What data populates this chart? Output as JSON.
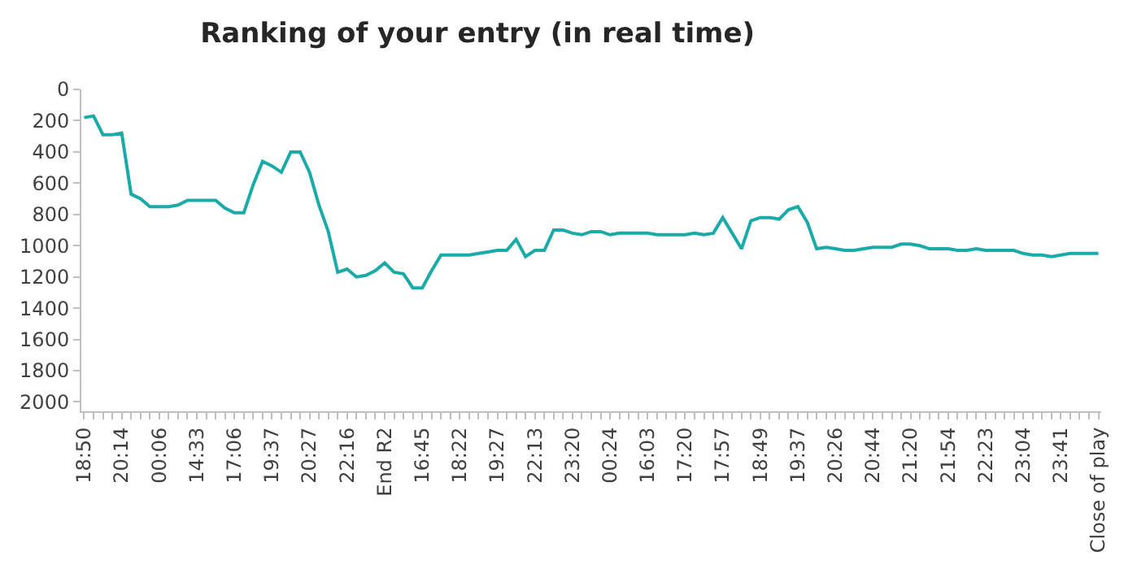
{
  "chart_data": {
    "type": "line",
    "title": "Ranking of your entry (in real time)",
    "categories": [
      "18:50",
      null,
      null,
      null,
      "20:14",
      null,
      null,
      null,
      "00:06",
      null,
      null,
      null,
      "14:33",
      null,
      null,
      null,
      "17:06",
      null,
      null,
      null,
      "19:37",
      null,
      null,
      null,
      "20:27",
      null,
      null,
      null,
      "22:16",
      null,
      null,
      null,
      "End R2",
      null,
      null,
      null,
      "16:45",
      null,
      null,
      null,
      "18:22",
      null,
      null,
      null,
      "19:27",
      null,
      null,
      null,
      "22:13",
      null,
      null,
      null,
      "23:20",
      null,
      null,
      null,
      "00:24",
      null,
      null,
      null,
      "16:03",
      null,
      null,
      null,
      "17:20",
      null,
      null,
      null,
      "17:57",
      null,
      null,
      null,
      "18:49",
      null,
      null,
      null,
      "19:37",
      null,
      null,
      null,
      "20:26",
      null,
      null,
      null,
      "20:44",
      null,
      null,
      null,
      "21:20",
      null,
      null,
      null,
      "21:54",
      null,
      null,
      null,
      "22:23",
      null,
      null,
      null,
      "23:04",
      null,
      null,
      null,
      "23:41",
      null,
      null,
      null,
      "Close of play"
    ],
    "series": [
      {
        "color": "#1aaba8",
        "values": [
          180,
          170,
          290,
          290,
          280,
          670,
          700,
          750,
          750,
          750,
          740,
          710,
          710,
          710,
          710,
          760,
          790,
          790,
          610,
          460,
          490,
          530,
          400,
          400,
          530,
          740,
          910,
          1170,
          1150,
          1200,
          1190,
          1160,
          1110,
          1170,
          1180,
          1270,
          1270,
          1160,
          1060,
          1060,
          1060,
          1060,
          1050,
          1040,
          1030,
          1030,
          960,
          1070,
          1030,
          1030,
          900,
          900,
          920,
          930,
          910,
          910,
          930,
          920,
          920,
          920,
          920,
          930,
          930,
          930,
          930,
          920,
          930,
          920,
          820,
          920,
          1020,
          840,
          820,
          820,
          830,
          770,
          750,
          850,
          1020,
          1010,
          1020,
          1030,
          1030,
          1020,
          1010,
          1010,
          1010,
          990,
          990,
          1000,
          1020,
          1020,
          1020,
          1030,
          1030,
          1020,
          1030,
          1030,
          1030,
          1030,
          1050,
          1060,
          1060,
          1070,
          1060,
          1050,
          1050,
          1050,
          1050
        ]
      }
    ],
    "ylim": [
      2060,
      0
    ],
    "yticks": [
      0,
      200,
      400,
      600,
      800,
      1000,
      1200,
      1400,
      1600,
      1800,
      2000
    ],
    "marker": "none",
    "line_style": "solid"
  }
}
